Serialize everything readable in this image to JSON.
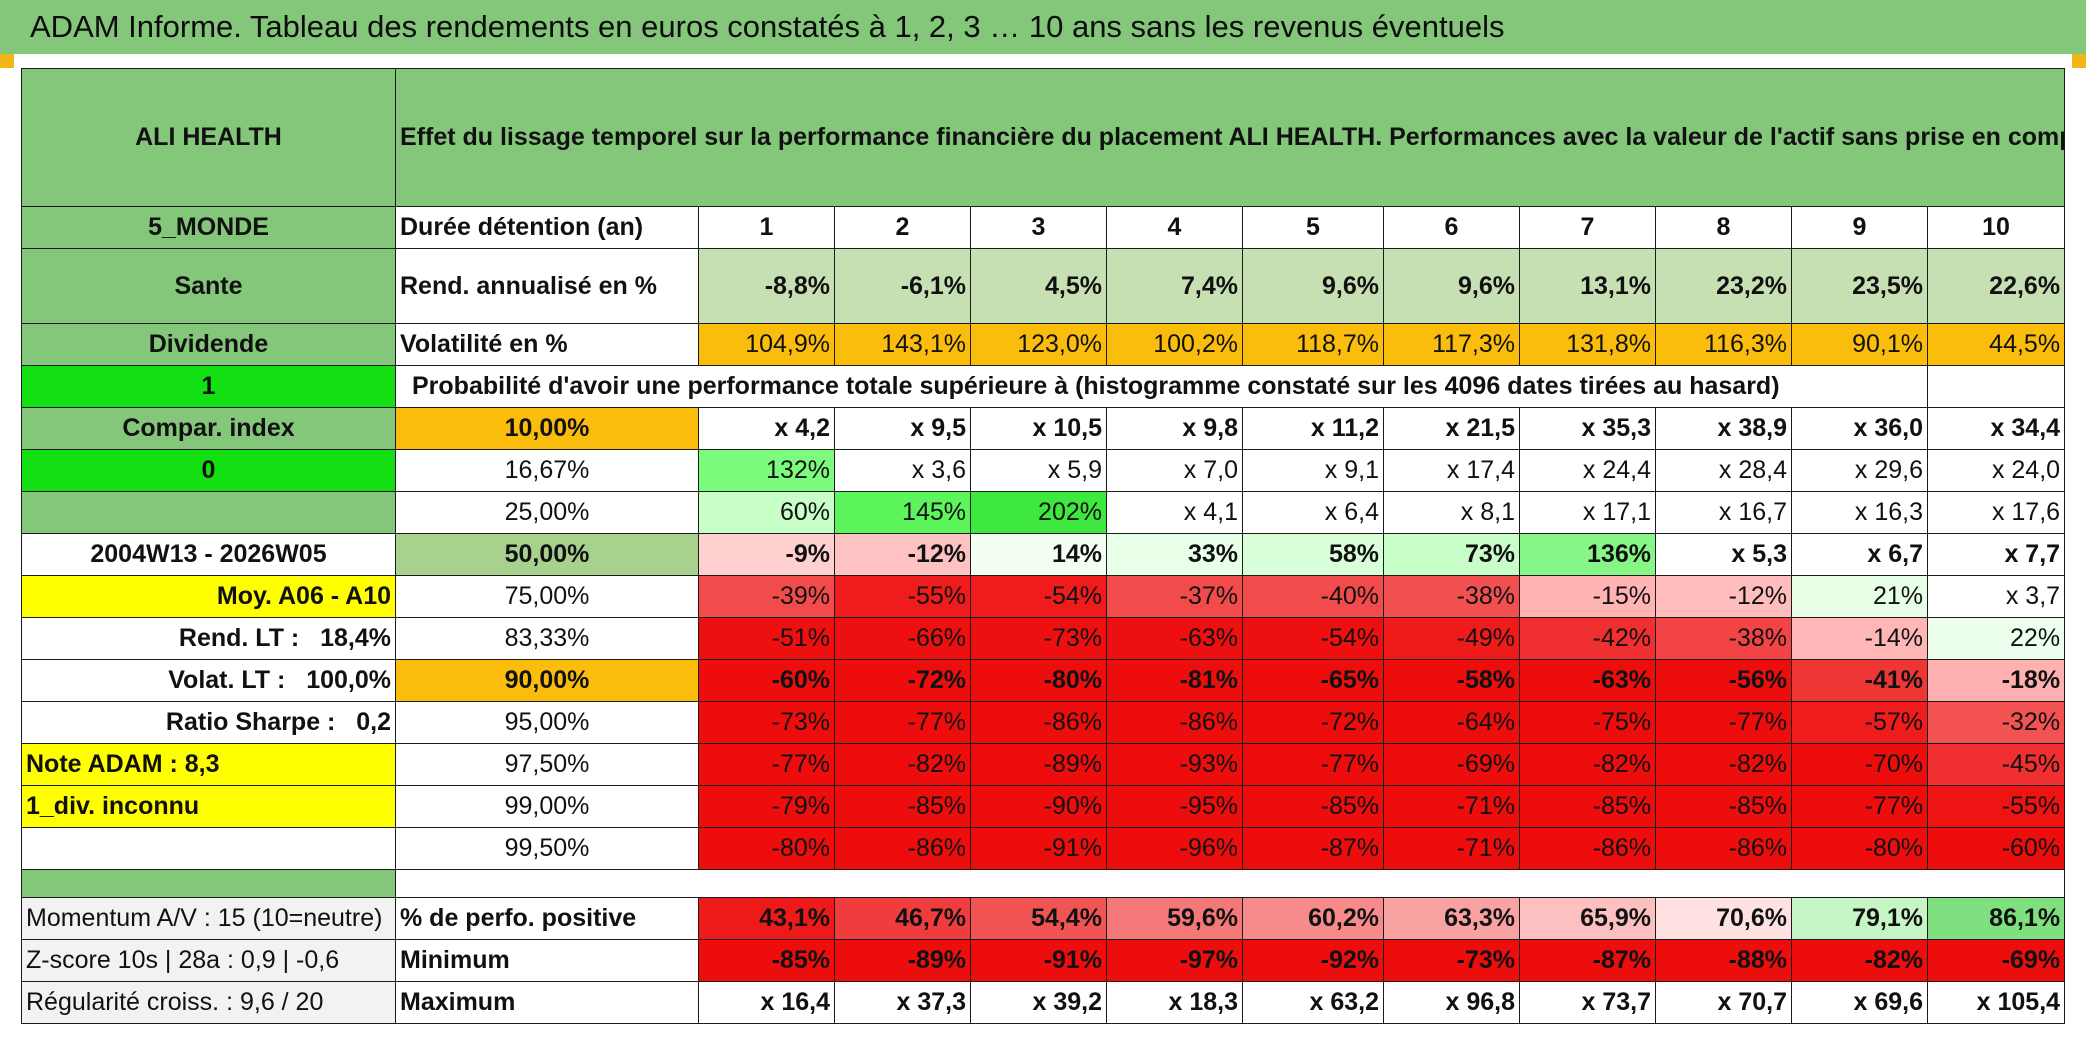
{
  "title": "ADAM Informe. Tableau des rendements en euros constatés à 1, 2, 3 … 10 ans sans les revenus éventuels",
  "header": {
    "asset": "ALI HEALTH",
    "description": "Effet du lissage temporel sur la performance financière du placement ALI HEALTH. Performances avec la valeur de l'actif sans prise en compte des revenus."
  },
  "left_labels": {
    "zone": "5_MONDE",
    "sector": "Sante",
    "type": "Dividende",
    "flag1": "1",
    "compar": "Compar. index",
    "flag0": "0",
    "period": "2004W13 - 2026W05",
    "moy": "Moy. A06 - A10",
    "rend_lt_label": "Rend. LT :",
    "rend_lt_value": "18,4%",
    "volat_lt_label": "Volat. LT :",
    "volat_lt_value": "100,0%",
    "sharpe_label": "Ratio Sharpe :",
    "sharpe_value": "0,2",
    "note": "Note ADAM : 8,3",
    "div": "1_div. inconnu"
  },
  "durations": {
    "label": "Durée détention (an)",
    "values": [
      "1",
      "2",
      "3",
      "4",
      "5",
      "6",
      "7",
      "8",
      "9",
      "10"
    ]
  },
  "rend": {
    "label": "Rend. annualisé en %",
    "values": [
      "-8,8%",
      "-6,1%",
      "4,5%",
      "7,4%",
      "9,6%",
      "9,6%",
      "13,1%",
      "23,2%",
      "23,5%",
      "22,6%"
    ]
  },
  "volat": {
    "label": "Volatilité en %",
    "values": [
      "104,9%",
      "143,1%",
      "123,0%",
      "100,2%",
      "118,7%",
      "117,3%",
      "131,8%",
      "116,3%",
      "90,1%",
      "44,5%"
    ]
  },
  "proba_title": "Probabilité d'avoir une performance totale supérieure à (histogramme constaté sur les 4096 dates tirées au hasard)",
  "quantiles": [
    {
      "label": "10,00%",
      "values": [
        "x 4,2",
        "x 9,5",
        "x 10,5",
        "x 9,8",
        "x 11,2",
        "x 21,5",
        "x 35,3",
        "x 38,9",
        "x 36,0",
        "x 34,4"
      ]
    },
    {
      "label": "16,67%",
      "values": [
        "132%",
        "x 3,6",
        "x 5,9",
        "x 7,0",
        "x 9,1",
        "x 17,4",
        "x 24,4",
        "x 28,4",
        "x 29,6",
        "x 24,0"
      ]
    },
    {
      "label": "25,00%",
      "values": [
        "60%",
        "145%",
        "202%",
        "x 4,1",
        "x 6,4",
        "x 8,1",
        "x 17,1",
        "x 16,7",
        "x 16,3",
        "x 17,6"
      ]
    },
    {
      "label": "50,00%",
      "values": [
        "-9%",
        "-12%",
        "14%",
        "33%",
        "58%",
        "73%",
        "136%",
        "x 5,3",
        "x 6,7",
        "x 7,7"
      ]
    },
    {
      "label": "75,00%",
      "values": [
        "-39%",
        "-55%",
        "-54%",
        "-37%",
        "-40%",
        "-38%",
        "-15%",
        "-12%",
        "21%",
        "x 3,7"
      ]
    },
    {
      "label": "83,33%",
      "values": [
        "-51%",
        "-66%",
        "-73%",
        "-63%",
        "-54%",
        "-49%",
        "-42%",
        "-38%",
        "-14%",
        "22%"
      ]
    },
    {
      "label": "90,00%",
      "values": [
        "-60%",
        "-72%",
        "-80%",
        "-81%",
        "-65%",
        "-58%",
        "-63%",
        "-56%",
        "-41%",
        "-18%"
      ]
    },
    {
      "label": "95,00%",
      "values": [
        "-73%",
        "-77%",
        "-86%",
        "-86%",
        "-72%",
        "-64%",
        "-75%",
        "-77%",
        "-57%",
        "-32%"
      ]
    },
    {
      "label": "97,50%",
      "values": [
        "-77%",
        "-82%",
        "-89%",
        "-93%",
        "-77%",
        "-69%",
        "-82%",
        "-82%",
        "-70%",
        "-45%"
      ]
    },
    {
      "label": "99,00%",
      "values": [
        "-79%",
        "-85%",
        "-90%",
        "-95%",
        "-85%",
        "-71%",
        "-85%",
        "-85%",
        "-77%",
        "-55%"
      ]
    },
    {
      "label": "99,50%",
      "values": [
        "-80%",
        "-86%",
        "-91%",
        "-96%",
        "-87%",
        "-71%",
        "-86%",
        "-86%",
        "-80%",
        "-60%"
      ]
    }
  ],
  "bottom": {
    "momentum": "Momentum A/V : 15 (10=neutre)",
    "zscore": "Z-score 10s | 28a : 0,9 | -0,6",
    "regularite": "Régularité croiss. : 9,6 / 20",
    "positive": {
      "label": "% de perfo. positive",
      "values": [
        "43,1%",
        "46,7%",
        "54,4%",
        "59,6%",
        "60,2%",
        "63,3%",
        "65,9%",
        "70,6%",
        "79,1%",
        "86,1%"
      ]
    },
    "minimum": {
      "label": "Minimum",
      "values": [
        "-85%",
        "-89%",
        "-91%",
        "-97%",
        "-92%",
        "-73%",
        "-87%",
        "-88%",
        "-82%",
        "-69%"
      ]
    },
    "maximum": {
      "label": "Maximum",
      "values": [
        "x 16,4",
        "x 37,3",
        "x 39,2",
        "x 18,3",
        "x 63,2",
        "x 96,8",
        "x 73,7",
        "x 70,7",
        "x 69,6",
        "x 105,4"
      ]
    }
  },
  "colors": {
    "green_header": "#84c77b",
    "bright_green": "#12e012",
    "orange": "#fbbd0c",
    "yellow": "#ffff00",
    "red_text": "#d11515",
    "light_green": "#c6e0b4"
  }
}
